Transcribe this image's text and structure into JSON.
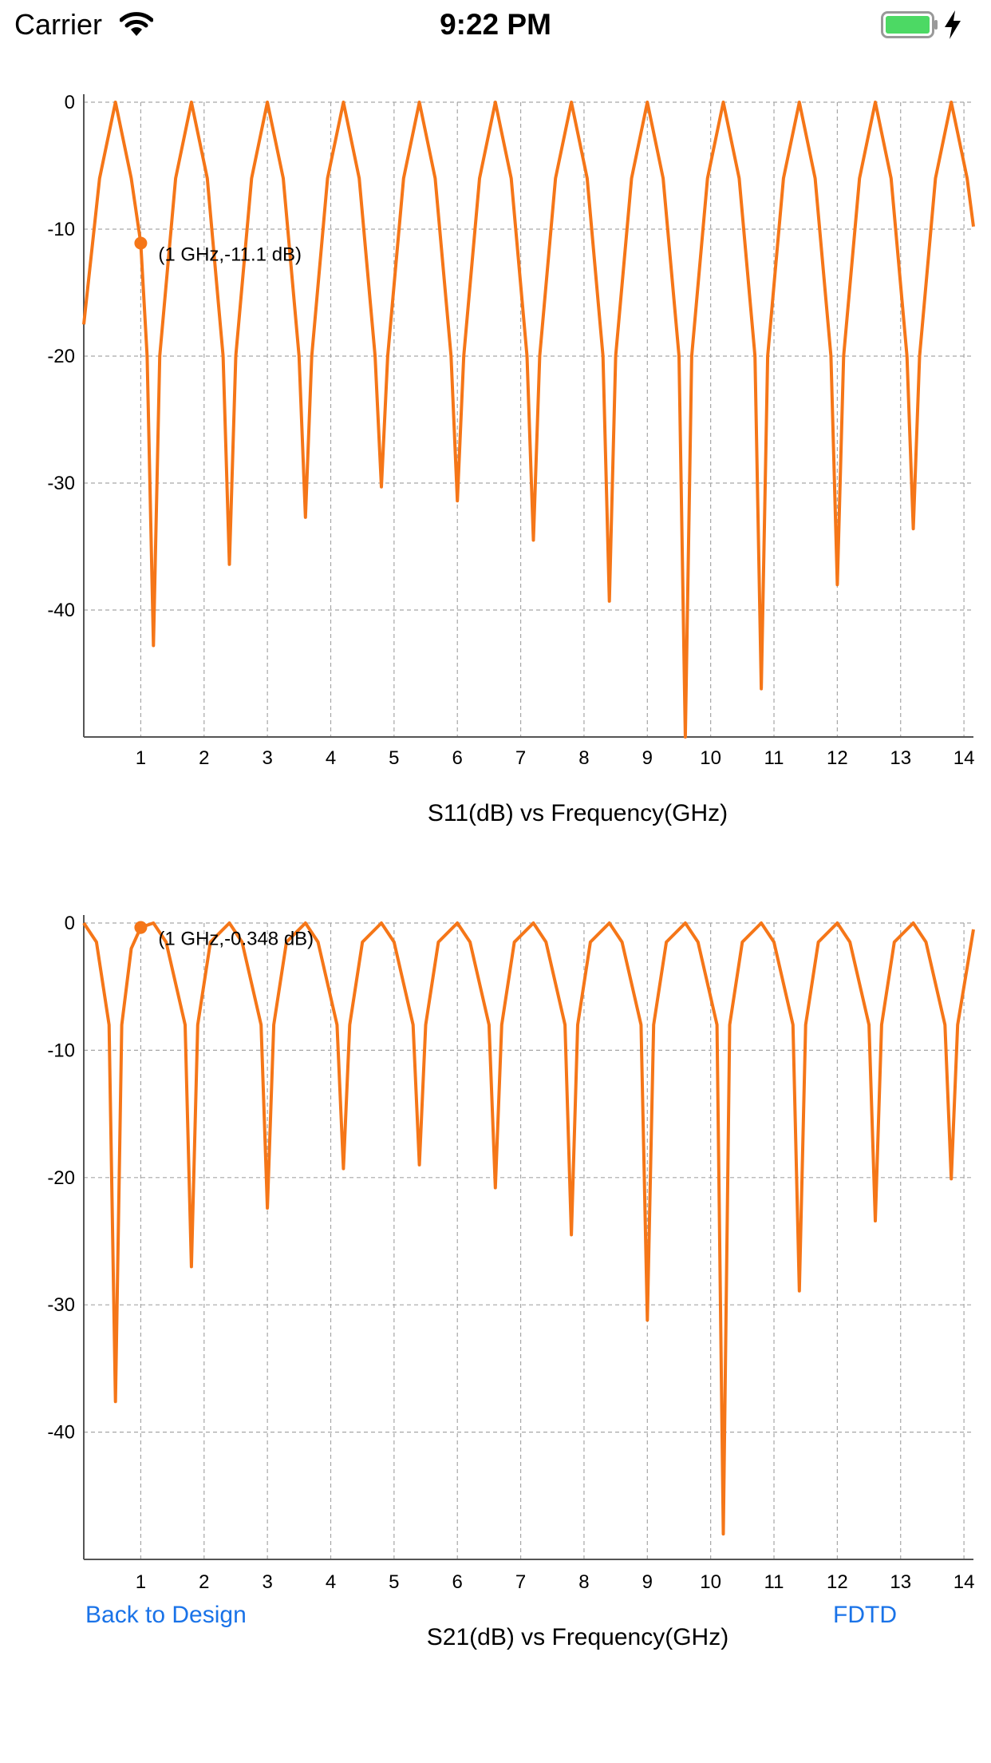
{
  "status_bar": {
    "carrier": "Carrier",
    "time": "9:22 PM",
    "battery_color": "#4cd964"
  },
  "colors": {
    "series": "#f57618",
    "grid": "#a6a6a6",
    "link": "#1a73e8"
  },
  "charts": [
    {
      "id": "s11",
      "marker": {
        "x": 1,
        "y": -11.1,
        "label": "(1 GHz,-11.1 dB)"
      }
    },
    {
      "id": "s21",
      "marker": {
        "x": 1,
        "y": -0.348,
        "label": "(1 GHz,-0.348 dB)"
      }
    }
  ],
  "chart_data": [
    {
      "type": "line",
      "title": "",
      "xlabel": "S11(dB) vs Frequency(GHz)",
      "ylabel": "",
      "xlim": [
        0.1,
        14.15
      ],
      "ylim": [
        -50,
        0
      ],
      "x_ticks": [
        "1",
        "2",
        "3",
        "4",
        "5",
        "6",
        "7",
        "8",
        "9",
        "10",
        "11",
        "12",
        "13",
        "14"
      ],
      "y_ticks": [
        "0",
        "-10",
        "-20",
        "-30",
        "-40"
      ],
      "grid": true,
      "series": [
        {
          "x": [
            0.1,
            0.35,
            0.6,
            0.85,
            1.0,
            1.1,
            1.2,
            1.3,
            1.55,
            1.8,
            2.05,
            2.3,
            2.4,
            2.5,
            2.75,
            3.0,
            3.25,
            3.5,
            3.6,
            3.7,
            3.95,
            4.2,
            4.45,
            4.7,
            4.8,
            4.9,
            5.15,
            5.4,
            5.65,
            5.9,
            6.0,
            6.1,
            6.35,
            6.6,
            6.85,
            7.1,
            7.2,
            7.3,
            7.55,
            7.8,
            8.05,
            8.3,
            8.4,
            8.5,
            8.75,
            9.0,
            9.25,
            9.5,
            9.6,
            9.7,
            9.95,
            10.2,
            10.45,
            10.7,
            10.8,
            10.9,
            11.15,
            11.4,
            11.65,
            11.9,
            12.0,
            12.1,
            12.35,
            12.6,
            12.85,
            13.1,
            13.2,
            13.3,
            13.55,
            13.8,
            14.05,
            14.15
          ],
          "values": [
            -17.5,
            -6.0,
            0,
            -6.0,
            -11.1,
            -20.0,
            -42.8,
            -20.0,
            -6.0,
            0,
            -6.0,
            -20.0,
            -36.4,
            -20.0,
            -6.0,
            0,
            -6.0,
            -20.0,
            -32.7,
            -20.0,
            -6.0,
            0,
            -6.0,
            -20.0,
            -30.3,
            -20.0,
            -6.0,
            0,
            -6.0,
            -20.0,
            -31.4,
            -20.0,
            -6.0,
            0,
            -6.0,
            -20.0,
            -34.5,
            -20.0,
            -6.0,
            0,
            -6.0,
            -20.0,
            -39.3,
            -20.0,
            -6.0,
            0,
            -6.0,
            -20.0,
            -50.0,
            -20.0,
            -6.0,
            0,
            -6.0,
            -20.0,
            -46.2,
            -20.0,
            -6.0,
            0,
            -6.0,
            -20.0,
            -38.0,
            -20.0,
            -6.0,
            0,
            -6.0,
            -20.0,
            -33.6,
            -20.0,
            -6.0,
            0,
            -6.0,
            -9.8
          ]
        }
      ]
    },
    {
      "type": "line",
      "title": "",
      "xlabel": "S21(dB) vs Frequency(GHz)",
      "ylabel": "",
      "xlim": [
        0.1,
        14.15
      ],
      "ylim": [
        -50,
        0
      ],
      "x_ticks": [
        "1",
        "2",
        "3",
        "4",
        "5",
        "6",
        "7",
        "8",
        "9",
        "10",
        "11",
        "12",
        "13",
        "14"
      ],
      "y_ticks": [
        "0",
        "-10",
        "-20",
        "-30",
        "-40"
      ],
      "grid": true,
      "series": [
        {
          "x": [
            0.1,
            0.3,
            0.5,
            0.6,
            0.7,
            0.85,
            1.0,
            1.2,
            1.4,
            1.7,
            1.8,
            1.9,
            2.1,
            2.4,
            2.6,
            2.9,
            3.0,
            3.1,
            3.3,
            3.6,
            3.8,
            4.1,
            4.2,
            4.3,
            4.5,
            4.8,
            5.0,
            5.3,
            5.4,
            5.5,
            5.7,
            6.0,
            6.2,
            6.5,
            6.6,
            6.7,
            6.9,
            7.2,
            7.4,
            7.7,
            7.8,
            7.9,
            8.1,
            8.4,
            8.6,
            8.9,
            9.0,
            9.1,
            9.3,
            9.6,
            9.8,
            10.1,
            10.2,
            10.3,
            10.5,
            10.8,
            11.0,
            11.3,
            11.4,
            11.5,
            11.7,
            12.0,
            12.2,
            12.5,
            12.6,
            12.7,
            12.9,
            13.2,
            13.4,
            13.7,
            13.8,
            13.9,
            14.15
          ],
          "values": [
            0,
            -1.5,
            -8.0,
            -37.6,
            -8.0,
            -2.0,
            -0.348,
            0,
            -1.5,
            -8.0,
            -27.0,
            -8.0,
            -1.5,
            0,
            -1.5,
            -8.0,
            -22.4,
            -8.0,
            -1.5,
            0,
            -1.5,
            -8.0,
            -19.3,
            -8.0,
            -1.5,
            0,
            -1.5,
            -8.0,
            -19.0,
            -8.0,
            -1.5,
            0,
            -1.5,
            -8.0,
            -20.8,
            -8.0,
            -1.5,
            0,
            -1.5,
            -8.0,
            -24.5,
            -8.0,
            -1.5,
            0,
            -1.5,
            -8.0,
            -31.2,
            -8.0,
            -1.5,
            0,
            -1.5,
            -8.0,
            -48.0,
            -8.0,
            -1.5,
            0,
            -1.5,
            -8.0,
            -28.9,
            -8.0,
            -1.5,
            0,
            -1.5,
            -8.0,
            -23.4,
            -8.0,
            -1.5,
            0,
            -1.5,
            -8.0,
            -20.1,
            -8.0,
            -0.5
          ]
        }
      ]
    }
  ],
  "nav": {
    "back_label": "Back to Design",
    "fdtd_label": "FDTD"
  }
}
